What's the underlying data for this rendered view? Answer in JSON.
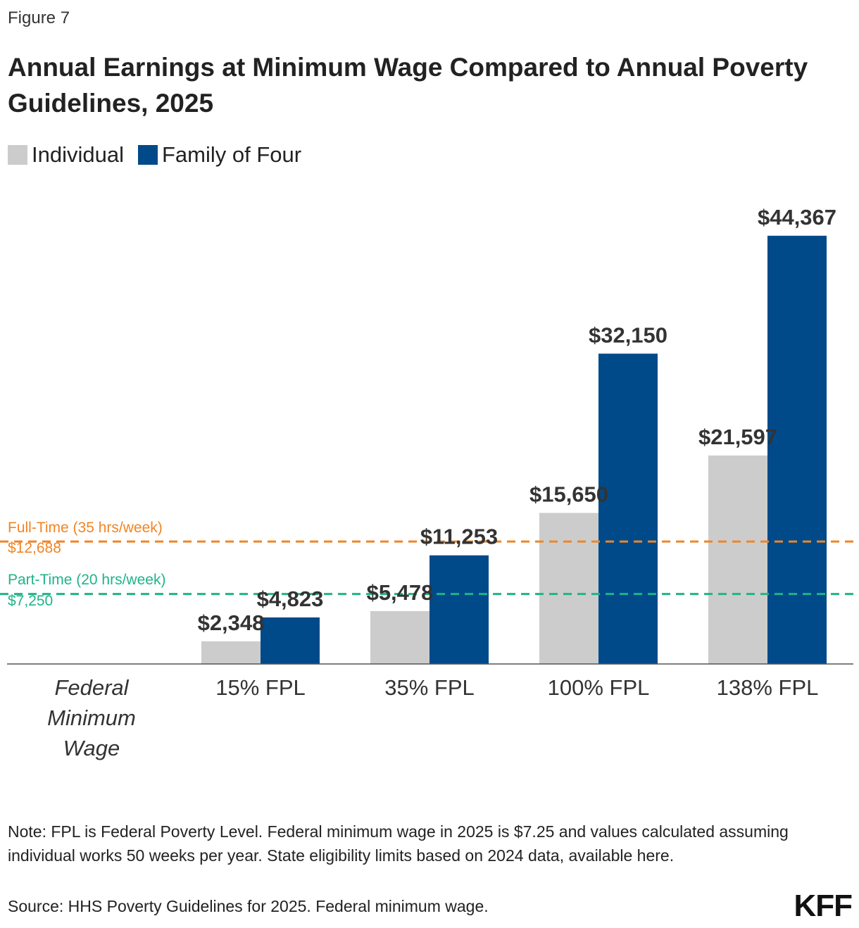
{
  "figure_label": "Figure 7",
  "title": "Annual Earnings at Minimum Wage Compared to Annual Poverty Guidelines, 2025",
  "legend": [
    {
      "label": "Individual",
      "color": "#cccccc"
    },
    {
      "label": "Family of Four",
      "color": "#004a8a"
    }
  ],
  "chart_data": {
    "type": "bar",
    "categories": [
      "15% FPL",
      "35% FPL",
      "100% FPL",
      "138% FPL"
    ],
    "category_axis_label_lines": [
      "Federal",
      "Minimum",
      "Wage"
    ],
    "series": [
      {
        "name": "Individual",
        "color": "#cccccc",
        "values": [
          2348,
          5478,
          15650,
          21597
        ],
        "labels": [
          "$2,348",
          "$5,478",
          "$15,650",
          "$21,597"
        ]
      },
      {
        "name": "Family of Four",
        "color": "#004a8a",
        "values": [
          4823,
          11253,
          32150,
          44367
        ],
        "labels": [
          "$4,823",
          "$11,253",
          "$32,150",
          "$44,367"
        ]
      }
    ],
    "reference_lines": [
      {
        "label": "Full-Time (35 hrs/week)",
        "value_label": "$12,688",
        "value": 12688,
        "color": "#f08526"
      },
      {
        "label": "Part-Time (20 hrs/week)",
        "value_label": "$7,250",
        "value": 7250,
        "color": "#1fb487"
      }
    ],
    "ylim": [
      0,
      48000
    ]
  },
  "note": "Note: FPL is Federal Poverty Level. Federal minimum wage in 2025 is $7.25 and values calculated assuming individual works 50 weeks per year. State eligibility limits based on 2024 data, available here.",
  "source": "Source: HHS Poverty Guidelines for 2025. Federal minimum wage.",
  "logo": "KFF"
}
